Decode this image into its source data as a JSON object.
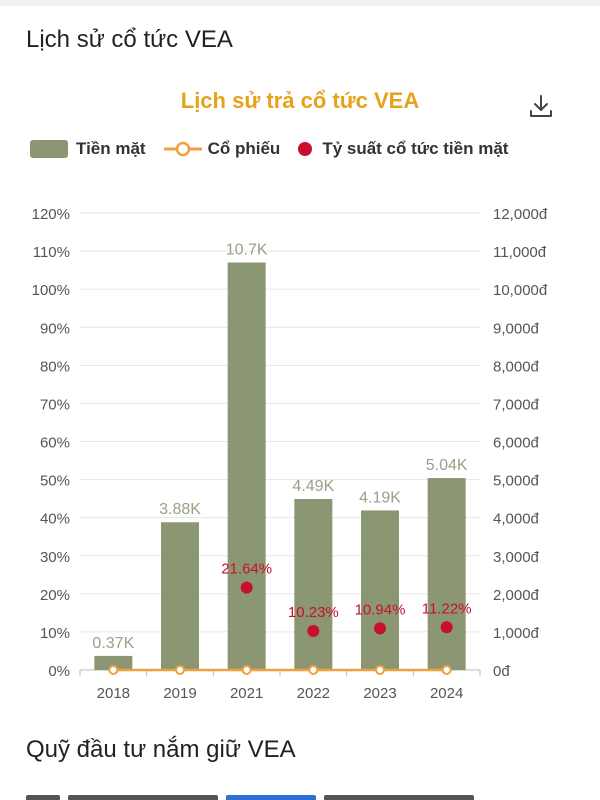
{
  "page": {
    "section_title": "Lịch sử cổ tức VEA",
    "section_title_2": "Quỹ đầu tư nắm giữ VEA",
    "download_icon": "download-icon"
  },
  "chart_data": {
    "type": "bar",
    "title": "Lịch sử trả cổ tức VEA",
    "categories": [
      "2018",
      "2019",
      "2021",
      "2022",
      "2023",
      "2024"
    ],
    "legend": {
      "position": "top-left",
      "items": [
        "Tiền mặt",
        "Cổ phiếu",
        "Tỷ suất cổ tức tiền mặt"
      ]
    },
    "series": [
      {
        "name": "Tiền mặt",
        "type": "bar",
        "axis": "right",
        "color": "#8b9672",
        "values": [
          370,
          3880,
          10700,
          4490,
          4190,
          5040
        ],
        "labels": [
          "0.37K",
          "3.88K",
          "10.7K",
          "4.49K",
          "4.19K",
          "5.04K"
        ]
      },
      {
        "name": "Cổ phiếu",
        "type": "line",
        "axis": "left",
        "color": "#f0a040",
        "values": [
          0,
          0,
          0,
          0,
          0,
          0
        ]
      },
      {
        "name": "Tỷ suất cổ tức tiền mặt",
        "type": "scatter",
        "axis": "left",
        "color": "#c8102e",
        "values": [
          null,
          null,
          21.64,
          10.23,
          10.94,
          11.22
        ],
        "labels": [
          "",
          "",
          "21.64%",
          "10.23%",
          "10.94%",
          "11.22%"
        ]
      }
    ],
    "left_axis": {
      "ylim": [
        0,
        120
      ],
      "ticks": [
        "0%",
        "10%",
        "20%",
        "30%",
        "40%",
        "50%",
        "60%",
        "70%",
        "80%",
        "90%",
        "100%",
        "110%",
        "120%"
      ]
    },
    "right_axis": {
      "ylim": [
        0,
        12000
      ],
      "ticks": [
        "0đ",
        "1,000đ",
        "2,000đ",
        "3,000đ",
        "4,000đ",
        "5,000đ",
        "6,000đ",
        "7,000đ",
        "8,000đ",
        "9,000đ",
        "10,000đ",
        "11,000đ",
        "12,000đ"
      ]
    },
    "grid": true,
    "label_color": "#9aa088",
    "yield_label_color": "#c8102e"
  }
}
